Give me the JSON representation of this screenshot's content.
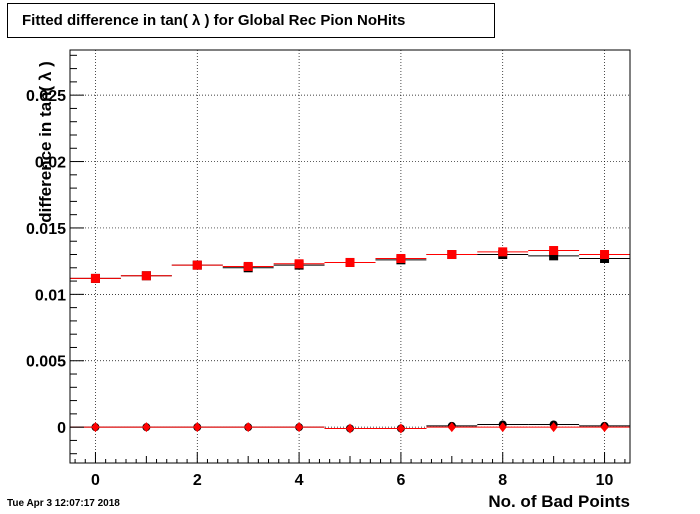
{
  "chart_data": {
    "type": "scatter",
    "title": "Fitted difference in tan( λ ) for Global Rec Pion NoHits",
    "xlabel": "No. of Bad Points",
    "ylabel": "difference in tan( λ )",
    "xlim": [
      -0.5,
      10.5
    ],
    "ylim": [
      -0.0027,
      0.0284
    ],
    "x_ticks": [
      0,
      2,
      4,
      6,
      8,
      10
    ],
    "x_tick_labels": [
      "0",
      "2",
      "4",
      "6",
      "8",
      "10"
    ],
    "y_ticks": [
      0,
      0.005,
      0.01,
      0.015,
      0.02,
      0.025
    ],
    "y_tick_labels": [
      "0",
      "0.005",
      "0.01",
      "0.015",
      "0.02",
      "0.025"
    ],
    "grid": true,
    "x": [
      0,
      1,
      2,
      3,
      4,
      5,
      6,
      7,
      8,
      9,
      10
    ],
    "series": [
      {
        "marker": "square",
        "color": "#000000",
        "values": [
          0.0112,
          0.0114,
          0.0122,
          0.012,
          0.0122,
          0.0124,
          0.0126,
          0.013,
          0.013,
          0.0129,
          0.0127
        ]
      },
      {
        "marker": "square",
        "color": "#ff0000",
        "values": [
          0.0112,
          0.0114,
          0.0122,
          0.0121,
          0.0123,
          0.0124,
          0.0127,
          0.013,
          0.0132,
          0.0133,
          0.013
        ]
      },
      {
        "marker": "circle",
        "color": "#000000",
        "values": [
          0.0,
          0.0,
          0.0,
          0.0,
          0.0,
          -0.0001,
          -0.0001,
          0.0001,
          0.0002,
          0.0002,
          0.0001
        ]
      },
      {
        "marker": "diamond",
        "color": "#ff0000",
        "values": [
          0.0,
          0.0,
          0.0,
          0.0,
          0.0,
          -0.0001,
          -0.0001,
          0.0,
          0.0,
          0.0,
          0.0
        ]
      }
    ]
  },
  "footer": {
    "datestamp": "Tue Apr  3 12:07:17 2018"
  }
}
